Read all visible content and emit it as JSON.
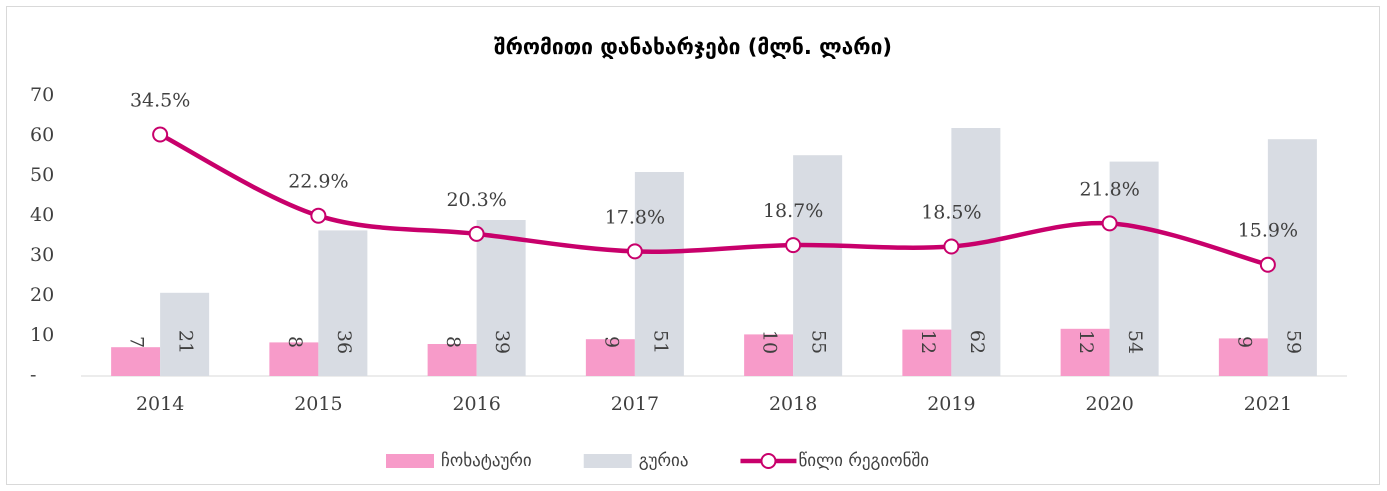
{
  "chart_data": {
    "type": "bar",
    "title": "შრომითი დანახარჯები (მლნ. ლარი)",
    "categories": [
      "2014",
      "2015",
      "2016",
      "2017",
      "2018",
      "2019",
      "2020",
      "2021"
    ],
    "series": [
      {
        "name": "ჩოხატაური",
        "color": "#f79bc9",
        "values": [
          7.2,
          8.4,
          8.0,
          9.2,
          10.4,
          11.6,
          11.8,
          9.4
        ],
        "value_labels": [
          "7",
          "8",
          "8",
          "9",
          "10",
          "12",
          "12",
          "9"
        ]
      },
      {
        "name": "გურია",
        "color": "#d8dce3",
        "values": [
          20.8,
          36.4,
          39,
          51,
          55.2,
          62,
          53.6,
          59.2
        ],
        "value_labels": [
          "21",
          "36",
          "39",
          "51",
          "55",
          "62",
          "54",
          "59"
        ]
      },
      {
        "name": "წილი რეგიონში",
        "color": "#c8006b",
        "type": "line",
        "axis": "y2",
        "values": [
          34.5,
          22.9,
          20.3,
          17.8,
          18.7,
          18.5,
          21.8,
          15.9
        ],
        "value_labels": [
          "34.5%",
          "22.9%",
          "20.3%",
          "17.8%",
          "18.7%",
          "18.5%",
          "21.8%",
          "15.9%"
        ]
      }
    ],
    "ylim": [
      0,
      70
    ],
    "yticks": [
      {
        "value": 0,
        "label": "-"
      },
      10,
      20,
      30,
      40,
      50,
      60,
      70
    ],
    "y2lim": [
      0,
      40
    ],
    "grid": false
  }
}
